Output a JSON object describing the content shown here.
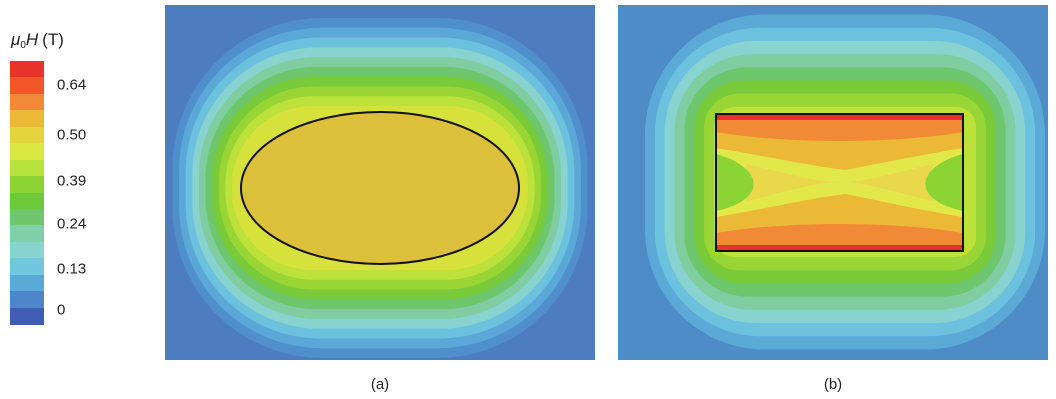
{
  "legend": {
    "title": {
      "symbol": "μ",
      "subscript": "0",
      "field": "H",
      "unit": "(T)"
    },
    "colors": [
      "#e8332a",
      "#f2572a",
      "#f08a36",
      "#ecb937",
      "#e6d43c",
      "#d9e843",
      "#b7e33c",
      "#8bd434",
      "#6ec93a",
      "#6fc66c",
      "#80cfa8",
      "#88d3cf",
      "#72c7e0",
      "#5aa9d6",
      "#4d86c8",
      "#3f5eb3"
    ],
    "ticks": [
      {
        "label": "0.64",
        "fraction": 0.09
      },
      {
        "label": "0.50",
        "fraction": 0.28
      },
      {
        "label": "0.39",
        "fraction": 0.455
      },
      {
        "label": "0.24",
        "fraction": 0.62
      },
      {
        "label": "0.13",
        "fraction": 0.79
      },
      {
        "label": "0",
        "fraction": 0.945
      }
    ]
  },
  "panels": {
    "a": {
      "caption": "(a)",
      "shape": "ellipse",
      "background": "#4d7dc0",
      "fill": "#dcbf3a",
      "ring_colors": [
        "#4f8fcb",
        "#5ba8d8",
        "#6cc1df",
        "#88d3cf",
        "#7fcda0",
        "#6ec66d",
        "#7acb39",
        "#99d635",
        "#bde13b",
        "#d6e13c"
      ]
    },
    "b": {
      "caption": "(b)",
      "shape": "rectangle",
      "background": "#4d8cc6",
      "ring_colors": [
        "#5aa9d6",
        "#6cc1df",
        "#88d3cf",
        "#7fcda0",
        "#6ec66d",
        "#7acb39",
        "#99d635",
        "#bde13b"
      ],
      "interior_colors": {
        "outer": "#e8332a",
        "band1": "#f08a36",
        "band2": "#ecb937",
        "band3": "#e2e84a",
        "core": "#e8d84a",
        "side": "#8bd434"
      }
    }
  }
}
